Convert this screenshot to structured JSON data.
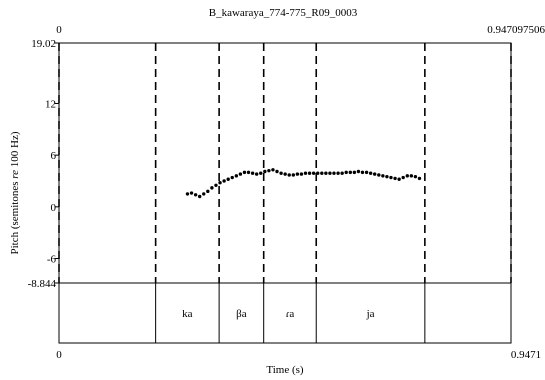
{
  "chart_data": {
    "type": "scatter",
    "title": "B_kawaraya_774-775_R09_0003",
    "top_left_time": "0",
    "top_right_time": "0.947097506",
    "xlabel": "Time (s)",
    "ylabel_prefix": "Pitch (semitones ",
    "ylabel_re": "re",
    "ylabel_suffix": " 100 Hz)",
    "xlim": [
      0,
      0.9471
    ],
    "ylim": [
      -8.844,
      19.02
    ],
    "x_tick_labels": [
      "0",
      "0.9471"
    ],
    "y_ticks": [
      {
        "value": 19.02,
        "label": "19.02"
      },
      {
        "value": 12,
        "label": "12"
      },
      {
        "value": 6,
        "label": "6"
      },
      {
        "value": 0,
        "label": "0"
      },
      {
        "value": -6,
        "label": "-6"
      },
      {
        "value": -8.844,
        "label": "-8.844"
      }
    ],
    "boundaries": [
      0.0,
      0.2025,
      0.3355,
      0.4289,
      0.539,
      0.7666,
      0.9471
    ],
    "segments": [
      {
        "label": "ka",
        "start": 0.2025,
        "end": 0.3355
      },
      {
        "label": "βa",
        "start": 0.3355,
        "end": 0.4289
      },
      {
        "label": "ɾa",
        "start": 0.4289,
        "end": 0.539
      },
      {
        "label": "ja",
        "start": 0.539,
        "end": 0.7666
      }
    ],
    "points": [
      [
        0.2692,
        1.5
      ],
      [
        0.2777,
        1.6
      ],
      [
        0.2863,
        1.4
      ],
      [
        0.2948,
        1.2
      ],
      [
        0.3033,
        1.5
      ],
      [
        0.3118,
        1.8
      ],
      [
        0.3204,
        2.2
      ],
      [
        0.3289,
        2.5
      ],
      [
        0.3374,
        2.8
      ],
      [
        0.346,
        3.0
      ],
      [
        0.3545,
        3.2
      ],
      [
        0.363,
        3.4
      ],
      [
        0.3716,
        3.6
      ],
      [
        0.3801,
        3.8
      ],
      [
        0.3886,
        4.0
      ],
      [
        0.3971,
        4.0
      ],
      [
        0.4057,
        3.9
      ],
      [
        0.4142,
        3.8
      ],
      [
        0.4227,
        3.9
      ],
      [
        0.4313,
        4.1
      ],
      [
        0.4398,
        4.2
      ],
      [
        0.4483,
        4.3
      ],
      [
        0.4568,
        4.1
      ],
      [
        0.4654,
        3.9
      ],
      [
        0.4739,
        3.8
      ],
      [
        0.4824,
        3.7
      ],
      [
        0.491,
        3.7
      ],
      [
        0.4995,
        3.8
      ],
      [
        0.508,
        3.8
      ],
      [
        0.5165,
        3.9
      ],
      [
        0.5251,
        3.9
      ],
      [
        0.5336,
        3.9
      ],
      [
        0.5421,
        3.9
      ],
      [
        0.5507,
        3.9
      ],
      [
        0.5592,
        3.9
      ],
      [
        0.5677,
        3.9
      ],
      [
        0.5762,
        3.9
      ],
      [
        0.5848,
        3.9
      ],
      [
        0.5933,
        3.9
      ],
      [
        0.6018,
        4.0
      ],
      [
        0.6104,
        4.0
      ],
      [
        0.6189,
        4.0
      ],
      [
        0.6274,
        4.1
      ],
      [
        0.6359,
        4.0
      ],
      [
        0.6445,
        4.0
      ],
      [
        0.653,
        3.9
      ],
      [
        0.6615,
        3.8
      ],
      [
        0.6701,
        3.7
      ],
      [
        0.6786,
        3.6
      ],
      [
        0.6871,
        3.5
      ],
      [
        0.6956,
        3.4
      ],
      [
        0.7042,
        3.3
      ],
      [
        0.7127,
        3.2
      ],
      [
        0.7212,
        3.4
      ],
      [
        0.7298,
        3.6
      ],
      [
        0.7383,
        3.6
      ],
      [
        0.7468,
        3.5
      ],
      [
        0.7553,
        3.3
      ]
    ]
  }
}
